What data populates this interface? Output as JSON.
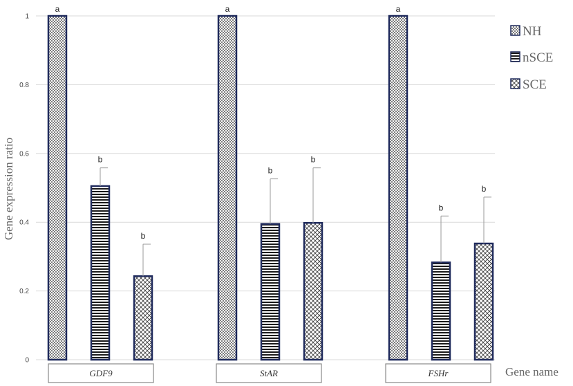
{
  "chart_data": {
    "type": "bar",
    "title": "",
    "xlabel": "Gene name",
    "ylabel": "Gene expression ratio",
    "ylim": [
      0,
      1
    ],
    "yticks": [
      "0",
      "0.2",
      "0.4",
      "0.6",
      "0.8",
      "1"
    ],
    "grid": true,
    "legend_position": "top-right",
    "categories": [
      "GDF9",
      "StAR",
      "FSHr"
    ],
    "series": [
      {
        "name": "NH",
        "pattern": "dots",
        "values": [
          1.0,
          1.0,
          1.0
        ],
        "errors": [
          0,
          0,
          0
        ],
        "labels": [
          "a",
          "a",
          "a"
        ]
      },
      {
        "name": "nSCE",
        "pattern": "horizontal-lines",
        "values": [
          0.505,
          0.395,
          0.283
        ],
        "errors": [
          0.053,
          0.131,
          0.135
        ],
        "labels": [
          "b",
          "b",
          "b"
        ]
      },
      {
        "name": "SCE",
        "pattern": "crosshatch",
        "values": [
          0.243,
          0.398,
          0.338
        ],
        "errors": [
          0.093,
          0.16,
          0.135
        ],
        "labels": [
          "b",
          "b",
          "b"
        ]
      }
    ],
    "colors": {
      "bar_border": "#1f2a5c",
      "grid": "#d9d9d9",
      "error_bar": "#999999"
    }
  }
}
